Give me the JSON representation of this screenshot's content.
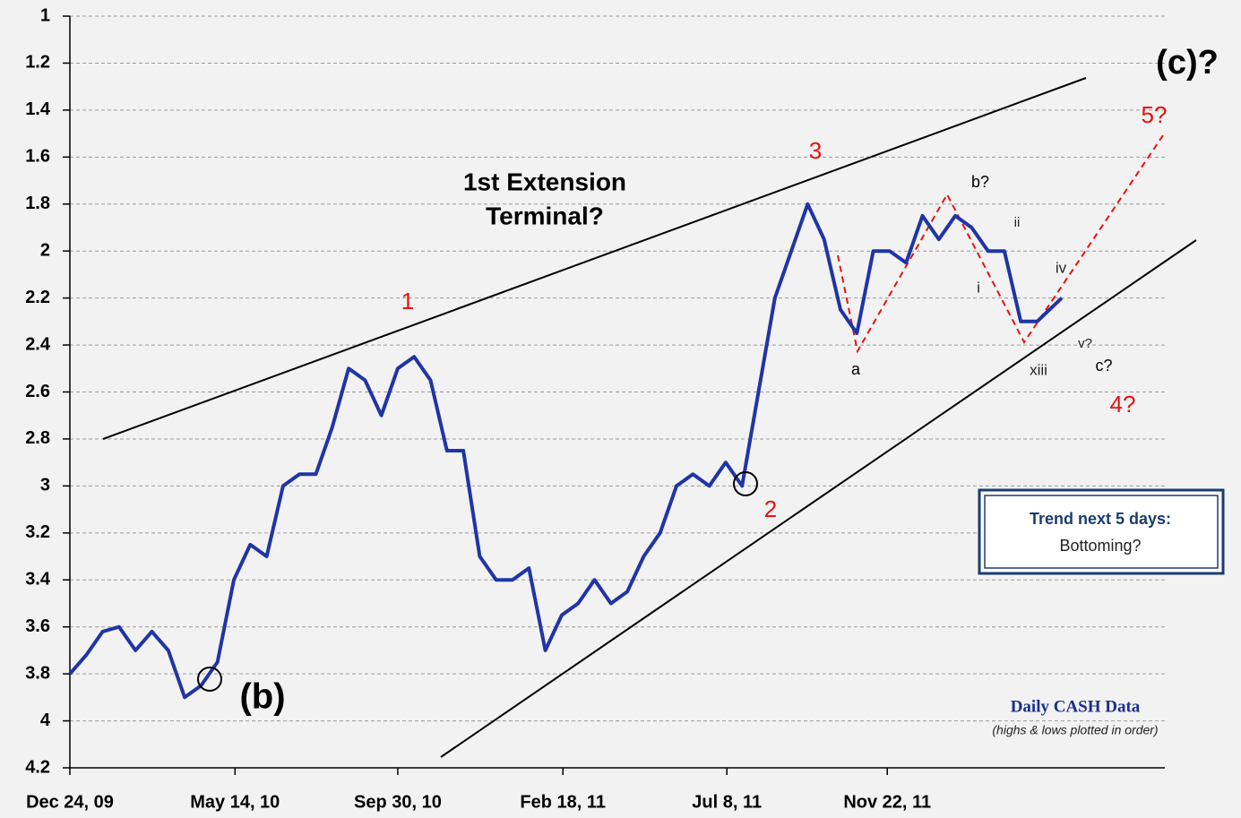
{
  "chart_data": {
    "type": "line",
    "y_inverted": true,
    "grid": true,
    "x": [
      "2009-12-24",
      "2010-01-07",
      "2010-01-21",
      "2010-02-04",
      "2010-02-18",
      "2010-03-04",
      "2010-03-18",
      "2010-04-01",
      "2010-04-15",
      "2010-04-29",
      "2010-05-13",
      "2010-05-27",
      "2010-06-10",
      "2010-06-24",
      "2010-07-08",
      "2010-07-22",
      "2010-08-05",
      "2010-08-19",
      "2010-09-02",
      "2010-09-16",
      "2010-09-30",
      "2010-10-14",
      "2010-10-28",
      "2010-11-11",
      "2010-11-25",
      "2010-12-09",
      "2010-12-23",
      "2011-01-06",
      "2011-01-20",
      "2011-02-03",
      "2011-02-17",
      "2011-03-03",
      "2011-03-17",
      "2011-03-31",
      "2011-04-14",
      "2011-04-28",
      "2011-05-12",
      "2011-05-26",
      "2011-06-09",
      "2011-06-23",
      "2011-07-07",
      "2011-07-21",
      "2011-08-04",
      "2011-08-18",
      "2011-09-01",
      "2011-09-15",
      "2011-09-29",
      "2011-10-13",
      "2011-10-27",
      "2011-11-10",
      "2011-11-24",
      "2011-12-08",
      "2011-12-22",
      "2012-01-05",
      "2012-01-19",
      "2012-02-02",
      "2012-02-16",
      "2012-03-01",
      "2012-03-15",
      "2012-03-29",
      "2012-04-19"
    ],
    "series": [
      {
        "name": "Daily CASH Data",
        "color": "#1f35a5",
        "values": [
          3.8,
          3.72,
          3.62,
          3.6,
          3.7,
          3.62,
          3.7,
          3.9,
          3.85,
          3.75,
          3.4,
          3.25,
          3.3,
          3.0,
          2.95,
          2.95,
          2.75,
          2.5,
          2.55,
          2.7,
          2.5,
          2.45,
          2.55,
          2.85,
          2.85,
          3.3,
          3.4,
          3.4,
          3.35,
          3.7,
          3.55,
          3.5,
          3.4,
          3.5,
          3.45,
          3.3,
          3.2,
          3.0,
          2.95,
          3.0,
          2.9,
          3.0,
          2.6,
          2.2,
          2.0,
          1.8,
          1.95,
          2.25,
          2.35,
          2.0,
          2.0,
          2.05,
          1.85,
          1.95,
          1.85,
          1.9,
          2.0,
          2.0,
          2.3,
          2.3,
          2.2
        ]
      }
    ],
    "xlim": [
      "2009-12-24",
      "2012-07-16"
    ],
    "xticks": [
      {
        "value": "2009-12-24",
        "label": "Dec 24, 09"
      },
      {
        "value": "2010-05-14",
        "label": "May 14, 10"
      },
      {
        "value": "2010-09-30",
        "label": "Sep 30, 10"
      },
      {
        "value": "2011-02-18",
        "label": "Feb 18, 11"
      },
      {
        "value": "2011-07-08",
        "label": "Jul 8, 11"
      },
      {
        "value": "2011-11-22",
        "label": "Nov 22, 11"
      }
    ],
    "ylim": [
      1,
      4.2
    ],
    "yticks": [
      1,
      1.2,
      1.4,
      1.6,
      1.8,
      2,
      2.2,
      2.4,
      2.6,
      2.8,
      3,
      3.2,
      3.4,
      3.6,
      3.8,
      4,
      4.2
    ],
    "annotations": [
      "(c)?",
      "5?",
      "3",
      "1",
      "2",
      "4?",
      "b?",
      "ii",
      "iv",
      "i",
      "a",
      "v?",
      "c?",
      "xiii",
      "1st Extension",
      "Terminal?",
      "(b)",
      "Trend next 5 days:",
      "Bottoming?",
      "Daily CASH Data",
      "(highs & lows plotted in order)"
    ]
  }
}
